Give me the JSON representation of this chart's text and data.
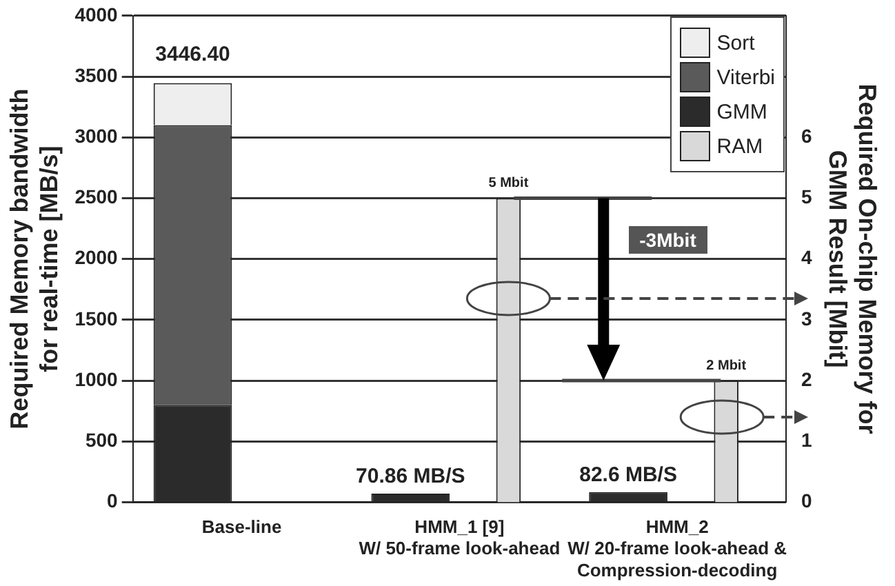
{
  "chart_data": {
    "type": "bar",
    "stacked": true,
    "categories": [
      "Base-line",
      "HMM_1 [9]\nW/ 50-frame look-ahead",
      "HMM_2\nW/ 20-frame look-ahead &\nCompression-decoding"
    ],
    "ylabel": "Required Memory bandwidth\nfor real-time [MB/s]",
    "y2label": "Required On-chip Memory for\nGMM Result [Mbit]",
    "ylim": [
      0,
      4000
    ],
    "yticks": [
      0,
      500,
      1000,
      1500,
      2000,
      2500,
      3000,
      3500,
      4000
    ],
    "y2lim": [
      0,
      8
    ],
    "y2ticks": [
      0,
      1,
      2,
      3,
      4,
      5,
      6
    ],
    "grid": "y",
    "legend": "top right",
    "series": [
      {
        "name": "GMM",
        "color": "#2b2b2b",
        "values": [
          800,
          70.86,
          82.6
        ],
        "value_labels": [
          null,
          "70.86 MB/S",
          "82.6 MB/S"
        ]
      },
      {
        "name": "Viterbi",
        "color": "#5a5a5a",
        "values": [
          2300,
          null,
          null
        ]
      },
      {
        "name": "Sort",
        "color": "#eeeeee",
        "values": [
          346.4,
          null,
          null
        ]
      },
      {
        "name": "RAM",
        "color": "#d9d9d9",
        "axis": "y2",
        "values": [
          null,
          5,
          2
        ],
        "value_labels": [
          null,
          "5 Mbit",
          "2 Mbit"
        ]
      }
    ],
    "totals": [
      "3446.40",
      null,
      null
    ],
    "annotations": [
      "-3Mbit"
    ]
  }
}
